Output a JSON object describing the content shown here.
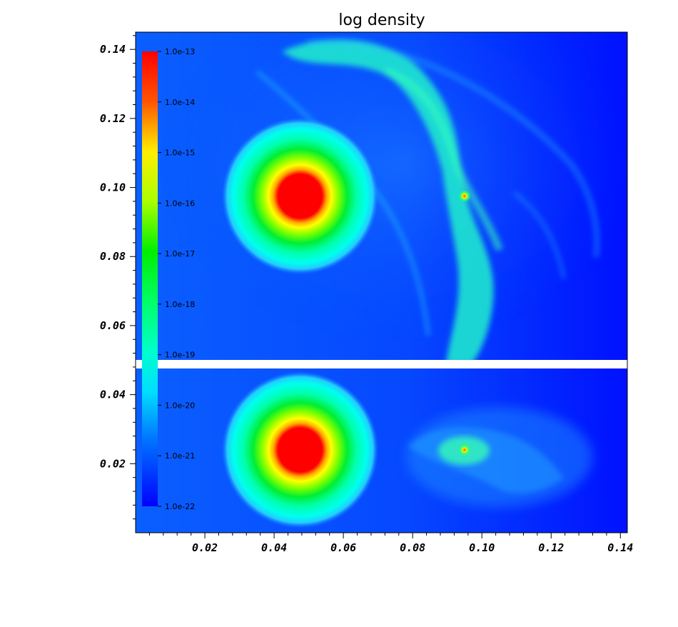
{
  "chart_data": {
    "type": "heatmap",
    "title": "log density",
    "xlabel": "",
    "ylabel": "",
    "xlim": [
      0.0,
      0.142
    ],
    "ylim": [
      0.0,
      0.145
    ],
    "x_ticks": [
      0.02,
      0.04,
      0.06,
      0.08,
      0.1,
      0.12,
      0.14
    ],
    "x_tick_labels": [
      "0.02",
      "0.04",
      "0.06",
      "0.08",
      "0.10",
      "0.12",
      "0.14"
    ],
    "y_ticks": [
      0.02,
      0.04,
      0.06,
      0.08,
      0.1,
      0.12,
      0.14
    ],
    "y_tick_labels": [
      "0.02",
      "0.04",
      "0.06",
      "0.08",
      "0.10",
      "0.12",
      "0.14"
    ],
    "panels": [
      {
        "y_range": [
          0.0,
          0.0475
        ],
        "star": {
          "x": 0.0475,
          "y": 0.024
        },
        "clump": {
          "x": 0.095,
          "y": 0.024
        }
      },
      {
        "y_range": [
          0.0497,
          0.145
        ],
        "star": {
          "x": 0.0475,
          "y": 0.0975
        },
        "clump": {
          "x": 0.095,
          "y": 0.0975
        }
      }
    ],
    "colorbar": {
      "scale": "log",
      "min": 1e-22,
      "max": 1e-13,
      "tick_labels": [
        "1.0e-13",
        "1.0e-14",
        "1.0e-15",
        "1.0e-16",
        "1.0e-17",
        "1.0e-18",
        "1.0e-19",
        "1.0e-20",
        "1.0e-21",
        "1.0e-22"
      ],
      "colors": [
        "#ff0000",
        "#ff8800",
        "#ffff00",
        "#aaff00",
        "#00ff00",
        "#00ff88",
        "#00ffdd",
        "#00aaff",
        "#0055ff",
        "#0000ff"
      ]
    },
    "grid": false,
    "legend": "none"
  }
}
